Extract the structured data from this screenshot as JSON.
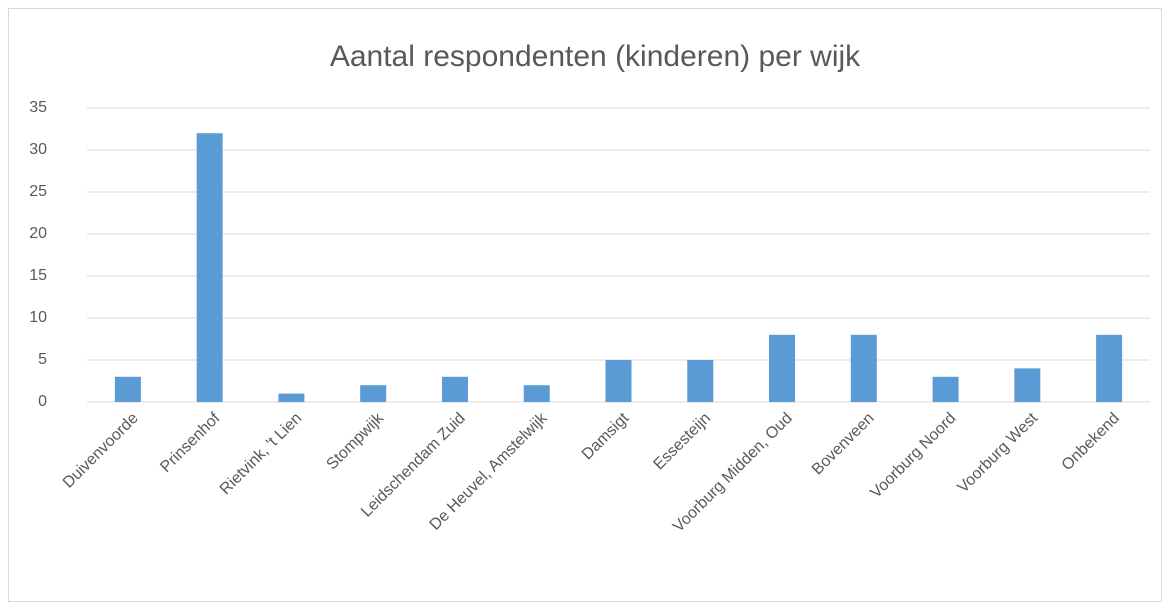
{
  "chart_data": {
    "type": "bar",
    "title": "Aantal respondenten (kinderen) per wijk",
    "categories": [
      "Duivenvoorde",
      "Prinsenhof",
      "Rietvink, 't Lien",
      "Stompwijk",
      "Leidschendam Zuid",
      "De Heuvel, Amstelwijk",
      "Damsigt",
      "Essesteijn",
      "Voorburg Midden, Oud",
      "Bovenveen",
      "Voorburg Noord",
      "Voorburg West",
      "Onbekend"
    ],
    "values": [
      3,
      32,
      1,
      2,
      3,
      2,
      5,
      5,
      8,
      8,
      3,
      4,
      8
    ],
    "color": "#5b9bd5",
    "ylim": [
      0,
      35
    ],
    "yticks": [
      0,
      5,
      10,
      15,
      20,
      25,
      30,
      35
    ],
    "grid": true
  }
}
